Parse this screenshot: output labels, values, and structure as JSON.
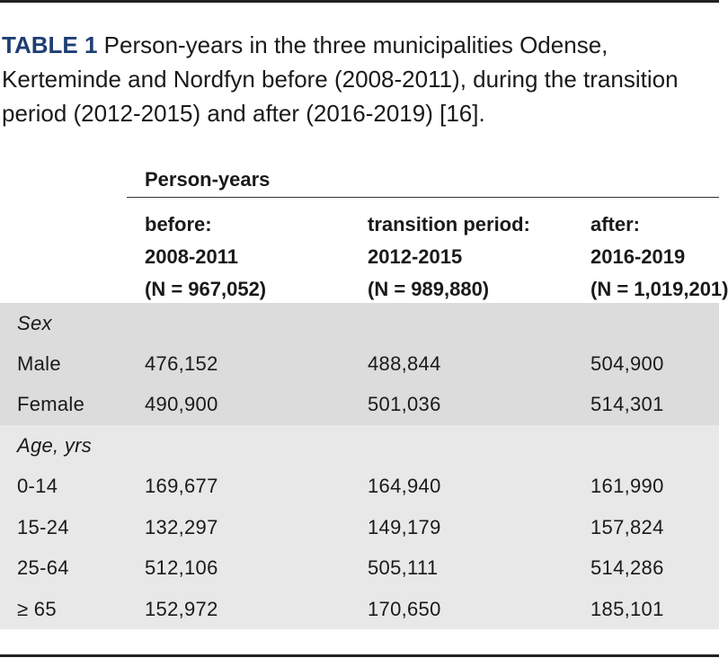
{
  "caption": {
    "label": "TABLE 1",
    "text": " Person-years in the three municipalities Odense, Kerteminde and Nordfyn before (2008-2011), during the transition period (2012-2015) and after (2016-2019) [16]."
  },
  "table": {
    "group_header": "Person-years",
    "columns": [
      {
        "line1": "before:",
        "line2": "2008-2011",
        "line3": "(N = 967,052)"
      },
      {
        "line1": "transition period:",
        "line2": "2012-2015",
        "line3": "(N = 989,880)"
      },
      {
        "line1": "after:",
        "line2": "2016-2019",
        "line3": "(N = 1,019,201)"
      }
    ],
    "sections": [
      {
        "label": "Sex",
        "rows": [
          {
            "label": "Male",
            "values": [
              "476,152",
              "488,844",
              "504,900"
            ]
          },
          {
            "label": "Female",
            "values": [
              "490,900",
              "501,036",
              "514,301"
            ]
          }
        ]
      },
      {
        "label": "Age, yrs",
        "rows": [
          {
            "label": "0-14",
            "values": [
              "169,677",
              "164,940",
              "161,990"
            ]
          },
          {
            "label": "15-24",
            "values": [
              "132,297",
              "149,179",
              "157,824"
            ]
          },
          {
            "label": "25-64",
            "values": [
              "512,106",
              "505,111",
              "514,286"
            ]
          },
          {
            "label": "≥ 65",
            "values": [
              "152,972",
              "170,650",
              "185,101"
            ]
          }
        ]
      }
    ]
  }
}
